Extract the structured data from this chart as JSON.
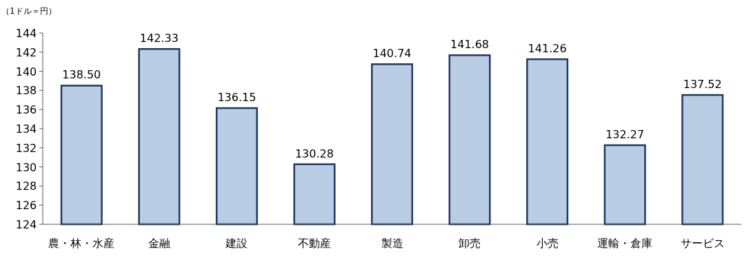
{
  "chart_data": {
    "type": "bar",
    "ylabel": "（1ドル＝円）",
    "categories": [
      "農・林・水産",
      "金融",
      "建設",
      "不動産",
      "製造",
      "卸売",
      "小売",
      "運輸・倉庫",
      "サービス"
    ],
    "values": [
      138.5,
      142.33,
      136.15,
      130.28,
      140.74,
      141.68,
      141.26,
      132.27,
      137.52
    ],
    "value_labels": [
      "138.50",
      "142.33",
      "136.15",
      "130.28",
      "140.74",
      "141.68",
      "141.26",
      "132.27",
      "137.52"
    ],
    "color": "#b9cde5",
    "ylim": [
      124,
      144
    ],
    "yticks": [
      124,
      126,
      128,
      130,
      132,
      134,
      136,
      138,
      140,
      142,
      144
    ]
  }
}
